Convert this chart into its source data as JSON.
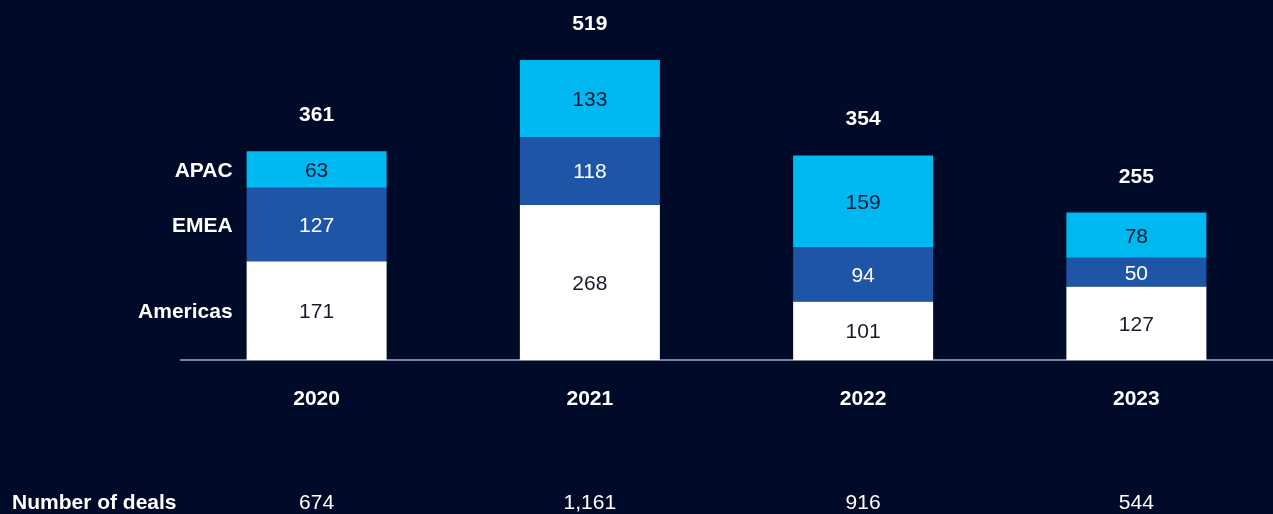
{
  "chart_data": {
    "type": "bar",
    "stacked": true,
    "categories": [
      "2020",
      "2021",
      "2022",
      "2023"
    ],
    "series": [
      {
        "name": "Americas",
        "color": "#ffffff",
        "values": [
          171,
          268,
          101,
          127
        ]
      },
      {
        "name": "EMEA",
        "color": "#1f55a6",
        "values": [
          127,
          118,
          94,
          50
        ]
      },
      {
        "name": "APAC",
        "color": "#00b8f0",
        "values": [
          63,
          133,
          159,
          78
        ]
      }
    ],
    "data_labels": true,
    "totals": [
      "361",
      "519",
      "354",
      "255"
    ],
    "legend": false,
    "grid": false,
    "annotations": [
      "Number of deals",
      "674",
      "1,161",
      "916",
      "544"
    ]
  }
}
